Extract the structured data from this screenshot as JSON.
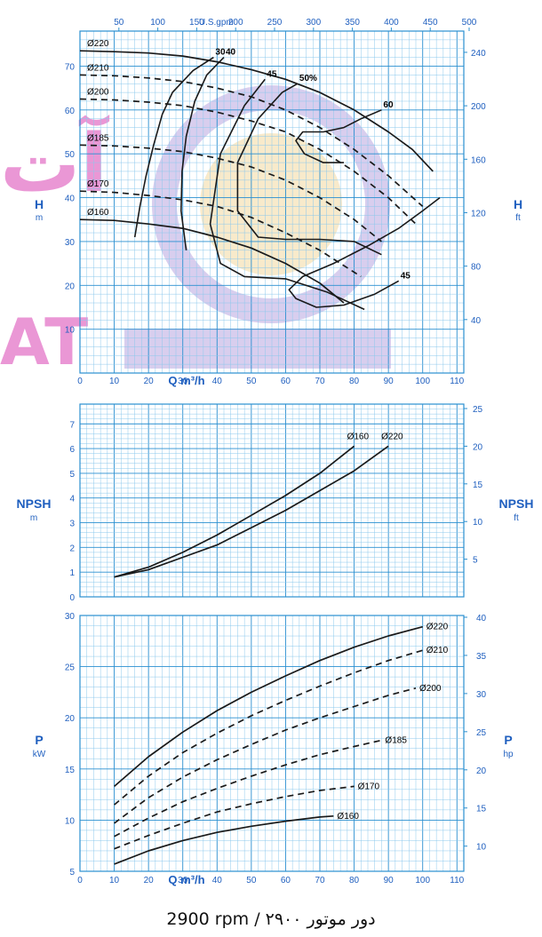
{
  "colors": {
    "grid": "#8cc8ec",
    "grid_major": "#2a8fd0",
    "axis_text": "#1f5fbf",
    "curve": "#1a1a1a",
    "watermark": "#b8a6e0",
    "watermark_text": "#e060c0",
    "watermark_center": "#f3d8a0"
  },
  "footer": "2900 rpm / ۲۹۰۰ دور موتور",
  "watermark": {
    "left_text": "آت",
    "bottom_text": "AT"
  },
  "chart_data": [
    {
      "id": "head",
      "type": "line",
      "xlabel": "Q m³/h",
      "x_ticks": [
        "0",
        "10",
        "20",
        "30",
        "40",
        "50",
        "60",
        "70",
        "80",
        "90",
        "100",
        "110"
      ],
      "xlim": [
        0,
        112
      ],
      "top_axis": {
        "label": "U.S.gpm",
        "ticks": [
          "50",
          "100",
          "150",
          "200",
          "250",
          "300",
          "350",
          "400",
          "450",
          "500"
        ]
      },
      "ylabel_left": "H",
      "ylabel_left_unit": "m",
      "ylim": [
        0,
        78
      ],
      "y_ticks_left": [
        "10",
        "20",
        "30",
        "40",
        "50",
        "60",
        "70"
      ],
      "ylabel_right": "H",
      "ylabel_right_unit": "ft",
      "y_ticks_right": [
        "40",
        "80",
        "120",
        "160",
        "200",
        "240"
      ],
      "grid": true,
      "series": [
        {
          "name": "Ø220",
          "style": "solid",
          "x": [
            0,
            10,
            20,
            30,
            40,
            50,
            60,
            70,
            80,
            90,
            97,
            103
          ],
          "y": [
            73.5,
            73.3,
            73,
            72.3,
            71,
            69.2,
            67,
            64,
            60,
            55,
            51,
            46
          ]
        },
        {
          "name": "Ø210",
          "style": "dashed",
          "x": [
            0,
            10,
            20,
            30,
            40,
            50,
            60,
            70,
            80,
            90,
            100
          ],
          "y": [
            68,
            67.8,
            67.3,
            66.5,
            65,
            63,
            60,
            56,
            51,
            45,
            38
          ]
        },
        {
          "name": "Ø200",
          "style": "dashed",
          "x": [
            0,
            10,
            20,
            30,
            40,
            50,
            60,
            70,
            80,
            90,
            98
          ],
          "y": [
            62.5,
            62.3,
            61.8,
            61,
            59.5,
            57.5,
            55,
            51,
            46,
            40,
            34
          ]
        },
        {
          "name": "Ø185",
          "style": "dashed",
          "x": [
            0,
            10,
            20,
            30,
            40,
            50,
            60,
            70,
            80,
            88
          ],
          "y": [
            52,
            51.8,
            51.3,
            50.5,
            49,
            47,
            44,
            40,
            35,
            30
          ]
        },
        {
          "name": "Ø170",
          "style": "dashed",
          "x": [
            0,
            10,
            20,
            30,
            40,
            50,
            60,
            70,
            80,
            82
          ],
          "y": [
            41.5,
            41.2,
            40.5,
            39.5,
            38,
            35.5,
            32,
            28,
            23,
            22
          ]
        },
        {
          "name": "Ø160",
          "style": "solid",
          "x": [
            0,
            10,
            20,
            30,
            40,
            50,
            60,
            70,
            77
          ],
          "y": [
            35,
            34.8,
            34,
            33,
            31,
            28.5,
            25,
            20.5,
            16
          ]
        }
      ],
      "efficiency_curves": [
        {
          "name": "30",
          "x": [
            16,
            17.5,
            19.3,
            21.5,
            24,
            27,
            33,
            39
          ],
          "y": [
            31,
            38,
            45,
            52,
            59,
            64,
            69,
            72
          ]
        },
        {
          "name": "40",
          "x": [
            31,
            29.5,
            29.8,
            31,
            33.5,
            37,
            42
          ],
          "y": [
            28,
            37,
            46,
            54,
            62,
            68,
            72
          ]
        },
        {
          "name": "45",
          "x": [
            83,
            72,
            60,
            48,
            41,
            38,
            41,
            48,
            54
          ],
          "y": [
            14.5,
            18.5,
            21.5,
            22,
            25,
            34,
            50,
            61,
            67
          ]
        },
        {
          "name": "50%",
          "x": [
            88,
            80,
            70,
            60,
            52,
            46,
            46,
            52,
            59,
            63.5
          ],
          "y": [
            27,
            30,
            30.5,
            30.5,
            31,
            37,
            48,
            58,
            64,
            66
          ]
        },
        {
          "name": "60",
          "x": [
            77,
            71,
            65.5,
            63,
            65,
            71,
            77,
            82,
            88
          ],
          "y": [
            48,
            48,
            50,
            53,
            55,
            55,
            56,
            58,
            60
          ]
        },
        {
          "name": "45",
          "x": [
            105,
            100,
            93,
            84,
            74,
            65,
            61,
            63,
            69,
            77,
            86,
            93
          ],
          "y": [
            40,
            37,
            33,
            29,
            25,
            22,
            19,
            17,
            15,
            15.5,
            18,
            21
          ]
        }
      ],
      "annotations": [
        "Ø220",
        "Ø210",
        "Ø200",
        "Ø185",
        "Ø170",
        "Ø160",
        "30",
        "40",
        "45",
        "50%",
        "60",
        "45"
      ]
    },
    {
      "id": "npsh",
      "type": "line",
      "xlim": [
        0,
        112
      ],
      "ylabel_left": "NPSH",
      "ylabel_left_unit": "m",
      "ylim": [
        0,
        7.8
      ],
      "y_ticks_left": [
        "0",
        "1",
        "2",
        "3",
        "4",
        "5",
        "6",
        "7"
      ],
      "ylabel_right": "NPSH",
      "ylabel_right_unit": "ft",
      "y_ticks_right": [
        "5",
        "10",
        "15",
        "20",
        "25"
      ],
      "grid": true,
      "series": [
        {
          "name": "Ø160",
          "style": "solid",
          "x": [
            10,
            20,
            30,
            40,
            50,
            60,
            70,
            80
          ],
          "y": [
            0.8,
            1.2,
            1.8,
            2.5,
            3.3,
            4.1,
            5.0,
            6.1
          ]
        },
        {
          "name": "Ø220",
          "style": "solid",
          "x": [
            10,
            20,
            30,
            40,
            50,
            60,
            70,
            80,
            90
          ],
          "y": [
            0.8,
            1.1,
            1.6,
            2.1,
            2.8,
            3.5,
            4.3,
            5.1,
            6.1
          ]
        }
      ]
    },
    {
      "id": "power",
      "type": "line",
      "xlabel": "Q m³/h",
      "x_ticks": [
        "0",
        "10",
        "20",
        "30",
        "40",
        "50",
        "60",
        "70",
        "80",
        "90",
        "100",
        "110"
      ],
      "xlim": [
        0,
        112
      ],
      "ylabel_left": "P",
      "ylabel_left_unit": "kW",
      "ylim": [
        5,
        30
      ],
      "y_ticks_left": [
        "5",
        "10",
        "15",
        "20",
        "25",
        "30"
      ],
      "ylabel_right": "P",
      "ylabel_right_unit": "hp",
      "y_ticks_right": [
        "10",
        "15",
        "20",
        "25",
        "30",
        "35",
        "40"
      ],
      "grid": true,
      "series": [
        {
          "name": "Ø220",
          "style": "solid",
          "x": [
            10,
            20,
            30,
            40,
            50,
            60,
            70,
            80,
            90,
            100
          ],
          "y": [
            13.3,
            16.2,
            18.6,
            20.7,
            22.5,
            24.1,
            25.6,
            26.9,
            28.0,
            28.9
          ]
        },
        {
          "name": "Ø210",
          "style": "dashed",
          "x": [
            10,
            20,
            30,
            40,
            50,
            60,
            70,
            80,
            90,
            100
          ],
          "y": [
            11.5,
            14.3,
            16.6,
            18.5,
            20.2,
            21.7,
            23.1,
            24.4,
            25.6,
            26.6
          ]
        },
        {
          "name": "Ø200",
          "style": "dashed",
          "x": [
            10,
            20,
            30,
            40,
            50,
            60,
            70,
            80,
            90,
            98
          ],
          "y": [
            9.7,
            12.2,
            14.2,
            15.9,
            17.4,
            18.8,
            20.0,
            21.1,
            22.2,
            22.9
          ]
        },
        {
          "name": "Ø185",
          "style": "dashed",
          "x": [
            10,
            20,
            30,
            40,
            50,
            60,
            70,
            80,
            88
          ],
          "y": [
            8.4,
            10.2,
            11.8,
            13.1,
            14.3,
            15.4,
            16.4,
            17.2,
            17.8
          ]
        },
        {
          "name": "Ø170",
          "style": "dashed",
          "x": [
            10,
            20,
            30,
            40,
            50,
            60,
            70,
            80
          ],
          "y": [
            7.2,
            8.5,
            9.7,
            10.8,
            11.6,
            12.3,
            12.9,
            13.3
          ]
        },
        {
          "name": "Ø160",
          "style": "solid",
          "x": [
            10,
            20,
            30,
            40,
            50,
            60,
            70,
            74
          ],
          "y": [
            5.7,
            7.0,
            8.0,
            8.8,
            9.4,
            9.9,
            10.3,
            10.4
          ]
        }
      ]
    }
  ]
}
